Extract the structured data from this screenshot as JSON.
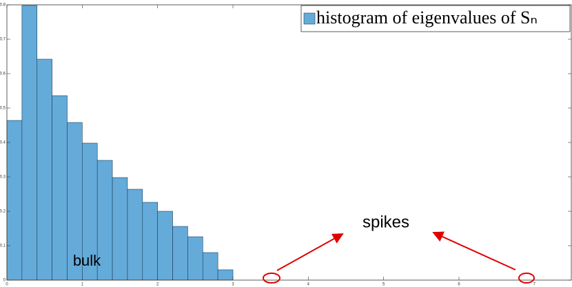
{
  "chart_data": {
    "type": "histogram",
    "bins": [
      0,
      0.2,
      0.4,
      0.6,
      0.8,
      1.0,
      1.2,
      1.4,
      1.6,
      1.8,
      2.0,
      2.2,
      2.4,
      2.6,
      2.8,
      3.0
    ],
    "series": [
      {
        "name": "histogram of eigenvalues of Sₙ",
        "color": "#64abda",
        "values": [
          0.464,
          0.798,
          0.642,
          0.536,
          0.458,
          0.398,
          0.348,
          0.298,
          0.264,
          0.226,
          0.2,
          0.156,
          0.126,
          0.08,
          0.03
        ]
      }
    ],
    "xlim": [
      0,
      7.5
    ],
    "ylim": [
      0,
      0.8
    ],
    "xticks": [
      0,
      1,
      2,
      3,
      4,
      5,
      6,
      7
    ],
    "yticks": [
      0,
      0.1,
      0.2,
      0.3,
      0.4,
      0.5,
      0.6,
      0.7,
      0.8
    ],
    "legend": "upper right",
    "annotations": [
      "bulk",
      "spikes"
    ]
  }
}
